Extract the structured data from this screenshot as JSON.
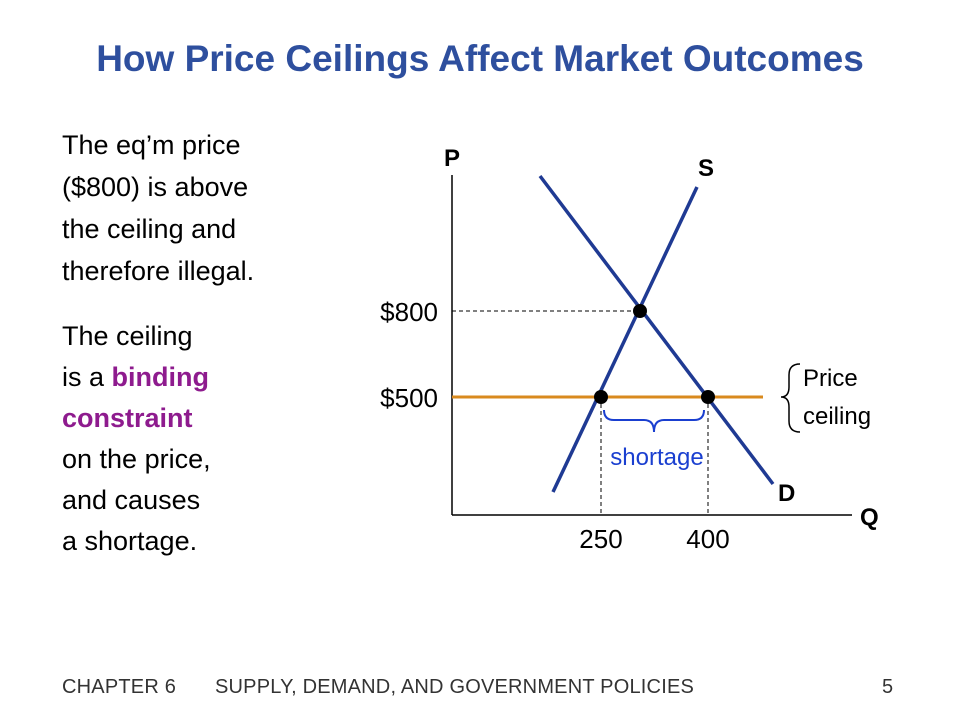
{
  "title": "How Price Ceilings Affect Market Outcomes",
  "paragraph1": [
    "The eq’m price",
    "($800) is above",
    "the ceiling and",
    "therefore illegal."
  ],
  "paragraph2": {
    "line1": "The ceiling",
    "line2_prefix": "is a ",
    "line2_highlight": "binding",
    "line3_highlight": "constraint",
    "line4": "on the price,",
    "line5": "and causes",
    "line6": "a shortage."
  },
  "chart_data": {
    "type": "line",
    "axis_labels": {
      "y": "P",
      "x": "Q"
    },
    "y_ticks": [
      "$800",
      "$500"
    ],
    "x_ticks": [
      "250",
      "400"
    ],
    "supply_label": "S",
    "demand_label": "D",
    "price_ceiling_label": [
      "Price",
      "ceiling"
    ],
    "shortage_label": "shortage",
    "equilibrium": {
      "price": 800
    },
    "price_ceiling": 500,
    "quantity_supplied_at_ceiling": 250,
    "quantity_demanded_at_ceiling": 400,
    "colors": {
      "curves": "#1F3A93",
      "ceiling": "#D98A1E",
      "shortage": "#1A3FD0",
      "axes": "#000000"
    }
  },
  "footer": {
    "chapter": "CHAPTER 6",
    "chapter_title": "SUPPLY, DEMAND, AND GOVERNMENT POLICIES",
    "page": "5"
  }
}
